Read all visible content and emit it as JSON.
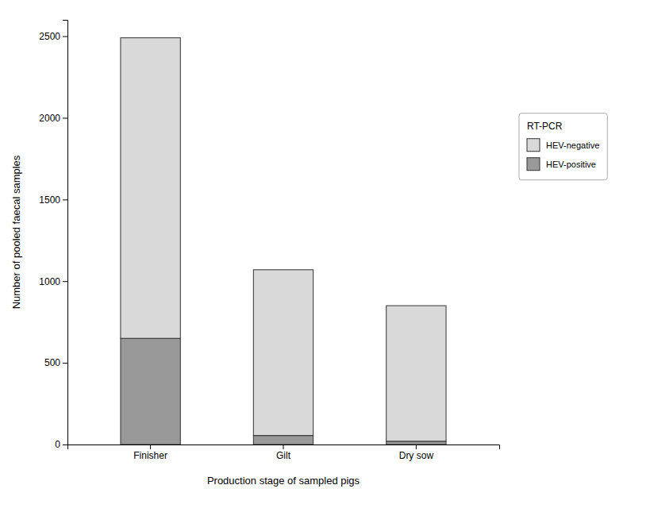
{
  "chart_data": {
    "type": "bar",
    "stacked": true,
    "xlabel": "Production stage of sampled pigs",
    "ylabel": "Number of pooled faecal samples",
    "categories": [
      "Finisher",
      "Gilt",
      "Dry sow"
    ],
    "series": [
      {
        "name": "HEV-positive",
        "color": "#999999",
        "values": [
          650,
          55,
          20
        ]
      },
      {
        "name": "HEV-negative",
        "color": "#d9d9d9",
        "values": [
          1840,
          1015,
          830
        ]
      }
    ],
    "legend_title": "RT-PCR",
    "legend": "right",
    "ylim": [
      0,
      2600
    ],
    "yticks": [
      0,
      500,
      1000,
      1500,
      2000,
      2500
    ],
    "grid": false
  }
}
